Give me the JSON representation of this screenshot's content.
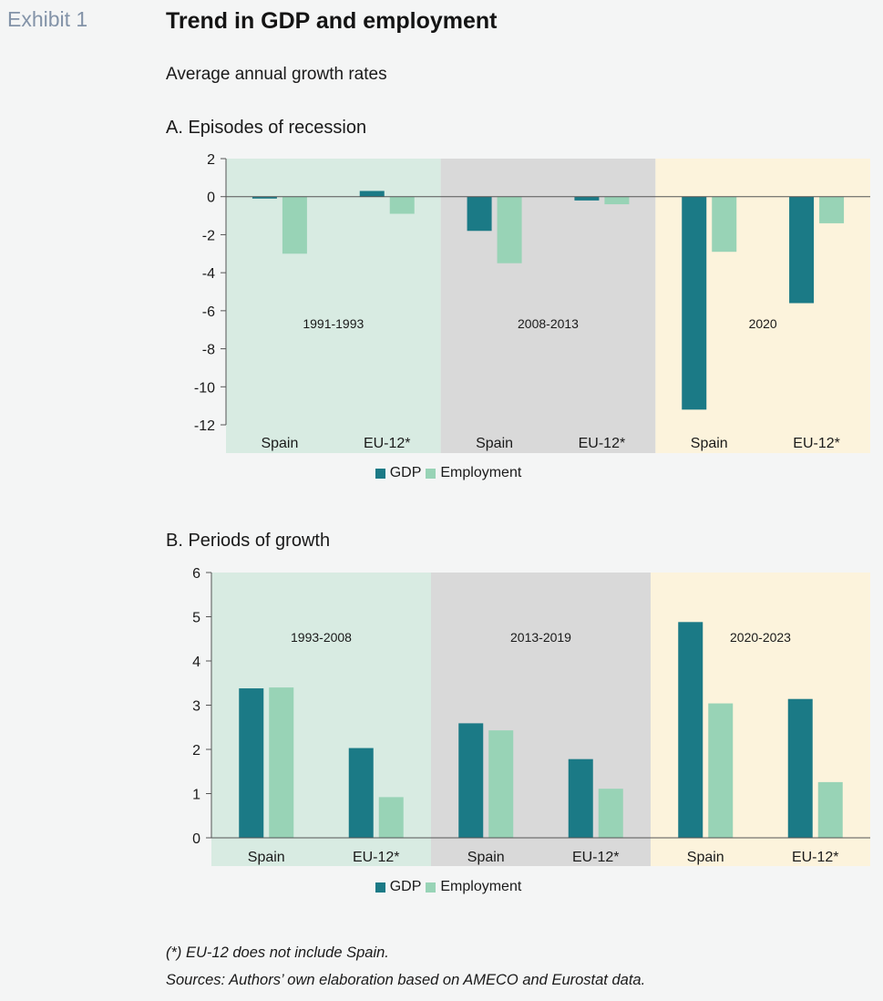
{
  "exhibit_label": "Exhibit 1",
  "title": "Trend in GDP and employment",
  "subtitle": "Average annual growth rates",
  "colors": {
    "gdp": "#1b7a86",
    "employment": "#98d3b6",
    "shade_green": "#d8ebe2",
    "shade_gray": "#d9d9d9",
    "shade_yellow": "#fcf3dc"
  },
  "legend": {
    "gdp": "GDP",
    "employment": "Employment"
  },
  "chart_data": [
    {
      "type": "bar",
      "title": "A. Episodes of recession",
      "ylim": [
        -12,
        2
      ],
      "yticks": [
        2,
        0,
        -2,
        -4,
        -6,
        -8,
        -10,
        -12
      ],
      "periods": [
        "1991-1993",
        "2008-2013",
        "2020"
      ],
      "categories": [
        "Spain",
        "EU-12*",
        "Spain",
        "EU-12*",
        "Spain",
        "EU-12*"
      ],
      "series": [
        {
          "name": "GDP",
          "values": [
            -0.1,
            0.3,
            -1.8,
            -0.2,
            -11.2,
            -5.6
          ]
        },
        {
          "name": "Employment",
          "values": [
            -3.0,
            -0.9,
            -3.5,
            -0.4,
            -2.9,
            -1.4
          ]
        }
      ]
    },
    {
      "type": "bar",
      "title": "B. Periods of growth",
      "ylim": [
        0,
        6
      ],
      "yticks": [
        6,
        5,
        4,
        3,
        2,
        1,
        0
      ],
      "periods": [
        "1993-2008",
        "2013-2019",
        "2020-2023"
      ],
      "categories": [
        "Spain",
        "EU-12*",
        "Spain",
        "EU-12*",
        "Spain",
        "EU-12*"
      ],
      "series": [
        {
          "name": "GDP",
          "values": [
            3.38,
            2.03,
            2.59,
            1.78,
            4.88,
            3.14
          ]
        },
        {
          "name": "Employment",
          "values": [
            3.4,
            0.92,
            2.43,
            1.11,
            3.04,
            1.26
          ]
        }
      ]
    }
  ],
  "notes": {
    "note1": "(*) EU-12 does not include Spain.",
    "note2": "Sources: Authors’ own elaboration based on AMECO and Eurostat data."
  }
}
